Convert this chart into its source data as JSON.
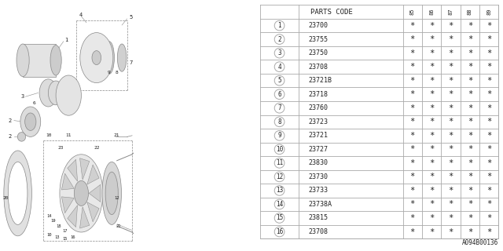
{
  "bg_color": "#ffffff",
  "col_headers": [
    "85",
    "86",
    "87",
    "88",
    "89"
  ],
  "parts": [
    {
      "num": "1",
      "code": "23700"
    },
    {
      "num": "2",
      "code": "23755"
    },
    {
      "num": "3",
      "code": "23750"
    },
    {
      "num": "4",
      "code": "23708"
    },
    {
      "num": "5",
      "code": "23721B"
    },
    {
      "num": "6",
      "code": "23718"
    },
    {
      "num": "7",
      "code": "23760"
    },
    {
      "num": "8",
      "code": "23723"
    },
    {
      "num": "9",
      "code": "23721"
    },
    {
      "num": "10",
      "code": "23727"
    },
    {
      "num": "11",
      "code": "23830"
    },
    {
      "num": "12",
      "code": "23730"
    },
    {
      "num": "13",
      "code": "23733"
    },
    {
      "num": "14",
      "code": "23738A"
    },
    {
      "num": "15",
      "code": "23815"
    },
    {
      "num": "16",
      "code": "23708"
    }
  ],
  "watermark": "A094B00136",
  "header_label": "PARTS CODE",
  "line_color": "#aaaaaa",
  "text_color": "#222222",
  "font_size_table": 6.0,
  "font_size_header": 6.5,
  "font_size_num": 5.5,
  "font_size_year": 5.0
}
